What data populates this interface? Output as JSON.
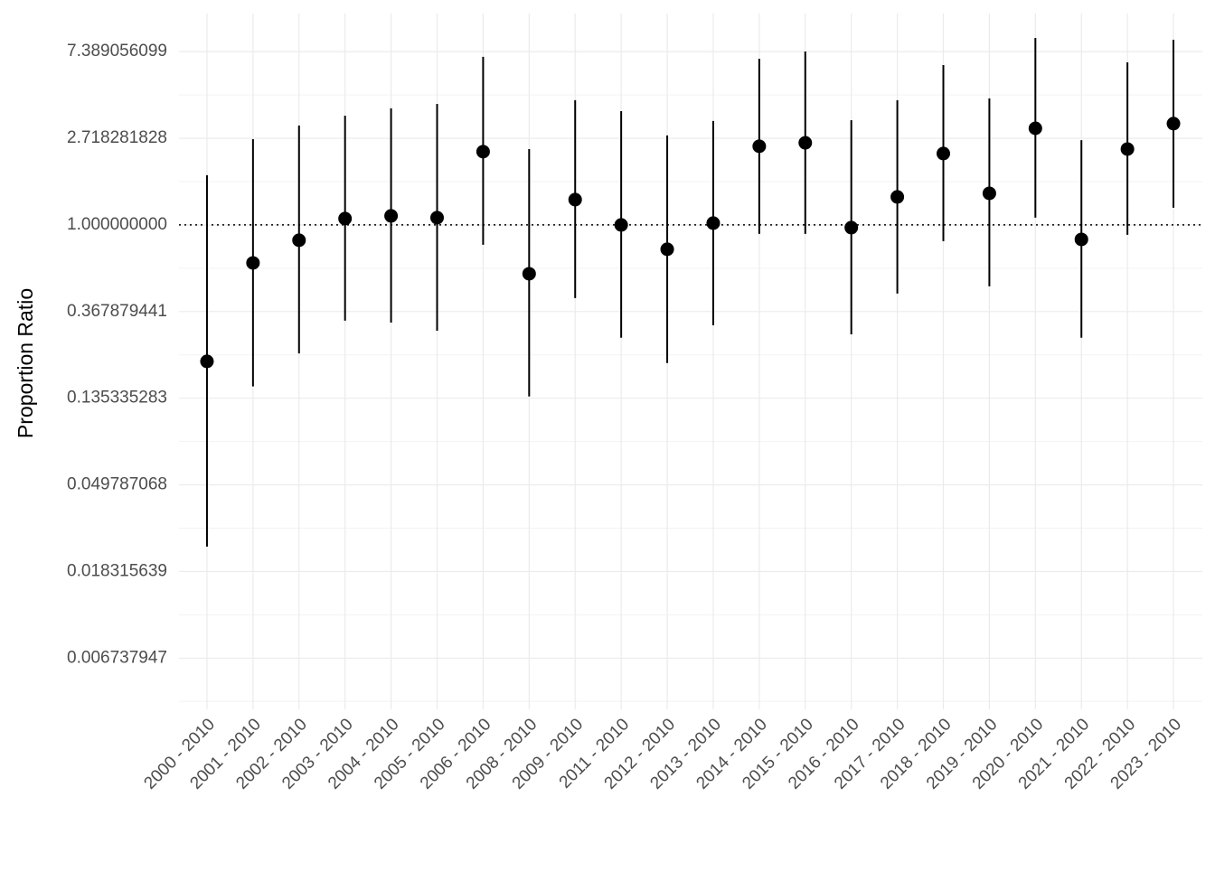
{
  "chart_data": {
    "type": "pointrange",
    "y_label": "Proportion Ratio",
    "categories": [
      "2000 - 2010",
      "2001 - 2010",
      "2002 - 2010",
      "2003 - 2010",
      "2004 - 2010",
      "2005 - 2010",
      "2006 - 2010",
      "2008 - 2010",
      "2009 - 2010",
      "2011 - 2010",
      "2012 - 2010",
      "2013 - 2010",
      "2014 - 2010",
      "2015 - 2010",
      "2016 - 2010",
      "2017 - 2010",
      "2018 - 2010",
      "2019 - 2010",
      "2020 - 2010",
      "2021 - 2010",
      "2022 - 2010",
      "2023 - 2010"
    ],
    "series": [
      {
        "color": "#000000",
        "values": [
          0.207,
          0.645,
          0.838,
          1.076,
          1.11,
          1.087,
          2.33,
          0.569,
          1.339,
          1.0,
          0.755,
          1.021,
          2.48,
          2.58,
          0.969,
          1.382,
          2.28,
          1.44,
          3.05,
          0.846,
          2.4,
          3.22
        ],
        "lower": [
          0.0244,
          0.155,
          0.227,
          0.331,
          0.324,
          0.295,
          0.795,
          0.138,
          0.43,
          0.272,
          0.203,
          0.314,
          0.901,
          0.901,
          0.283,
          0.453,
          0.829,
          0.492,
          1.087,
          0.272,
          0.892,
          1.219
        ],
        "upper": [
          1.775,
          2.69,
          3.15,
          3.53,
          3.84,
          4.04,
          6.96,
          2.4,
          4.22,
          3.72,
          2.81,
          3.32,
          6.81,
          7.4,
          3.35,
          4.22,
          6.33,
          4.31,
          8.66,
          2.66,
          6.53,
          8.48
        ]
      }
    ],
    "ylim": [
      0.00373,
      11.47
    ],
    "yticks": [
      0.006737947,
      0.018315639,
      0.049787068,
      0.135335283,
      0.367879441,
      {
        "value": 1,
        "label": "1.000000000"
      },
      2.718281828,
      7.389056099
    ],
    "log_scale": true,
    "grid": true,
    "reference_line": 1
  }
}
